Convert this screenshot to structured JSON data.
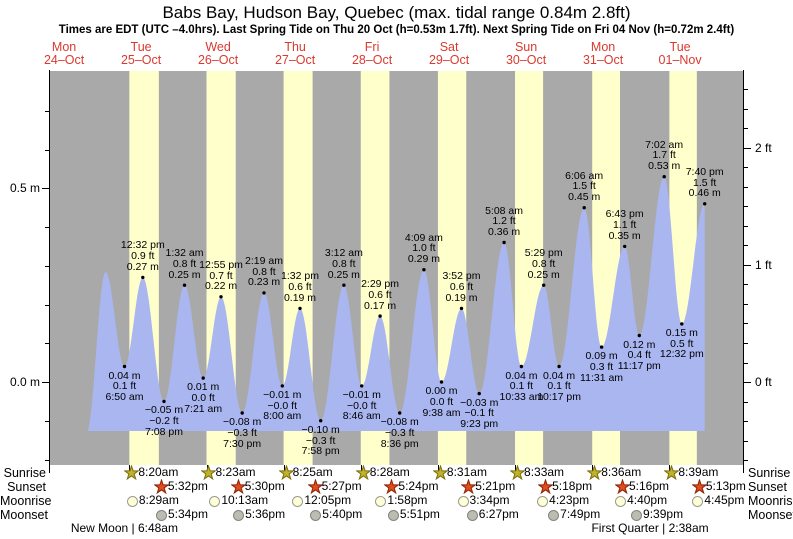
{
  "title": "Babs Bay, Hudson Bay, Quebec (max. tidal range 0.84m 2.8ft)",
  "subtitle": "Times are EDT (UTC –4.0hrs). Last Spring Tide on Thu 20 Oct (h=0.53m 1.7ft). Next Spring Tide on Fri 04 Nov (h=0.72m 2.4ft)",
  "days": [
    {
      "dow": "Mon",
      "date": "24–Oct"
    },
    {
      "dow": "Tue",
      "date": "25–Oct"
    },
    {
      "dow": "Wed",
      "date": "26–Oct"
    },
    {
      "dow": "Thu",
      "date": "27–Oct"
    },
    {
      "dow": "Fri",
      "date": "28–Oct"
    },
    {
      "dow": "Sat",
      "date": "29–Oct"
    },
    {
      "dow": "Sun",
      "date": "30–Oct"
    },
    {
      "dow": "Mon",
      "date": "31–Oct"
    },
    {
      "dow": "Tue",
      "date": "01–Nov"
    }
  ],
  "y_axis_left": {
    "unit": "m",
    "labels": [
      {
        "text": "0.5 m",
        "value": 0.5
      },
      {
        "text": "0.0 m",
        "value": 0.0
      }
    ],
    "minor_step": 0.1,
    "range": [
      -0.21,
      0.8
    ]
  },
  "y_axis_right": {
    "unit": "ft",
    "labels": [
      {
        "text": "2 ft",
        "value_ft": 2
      },
      {
        "text": "1 ft",
        "value_ft": 1
      },
      {
        "text": "0 ft",
        "value_ft": 0
      }
    ]
  },
  "chart_data": {
    "type": "area",
    "title": "Tide height for Babs Bay, Hudson Bay, Quebec",
    "x_range_days": "Mon 24-Oct to Tue 01-Nov",
    "ylim_m": [
      -0.21,
      0.8
    ],
    "curve_start": {
      "t": 19.0,
      "v": -0.13
    },
    "extremes": [
      {
        "t": 24.92,
        "v": 0.284,
        "type": "high",
        "labeled": false
      },
      {
        "t": 30.833,
        "v": 0.04,
        "type": "low",
        "labeled": true,
        "label_m": "0.04 m",
        "label_ft": "0.1 ft",
        "label_time": "6:50 am"
      },
      {
        "t": 36.533,
        "v": 0.27,
        "type": "high",
        "labeled": true,
        "label_m": "0.27 m",
        "label_ft": "0.9 ft",
        "label_time": "12:32 pm"
      },
      {
        "t": 43.133,
        "v": -0.05,
        "type": "low",
        "labeled": true,
        "label_m": "−0.05 m",
        "label_ft": "−0.2 ft",
        "label_time": "7:08 pm"
      },
      {
        "t": 49.533,
        "v": 0.25,
        "type": "high",
        "labeled": true,
        "label_m": "0.25 m",
        "label_ft": "0.8 ft",
        "label_time": "1:32 am"
      },
      {
        "t": 55.35,
        "v": 0.01,
        "type": "low",
        "labeled": true,
        "label_m": "0.01 m",
        "label_ft": "0.0 ft",
        "label_time": "7:21 am"
      },
      {
        "t": 60.917,
        "v": 0.22,
        "type": "high",
        "labeled": true,
        "label_m": "0.22 m",
        "label_ft": "0.7 ft",
        "label_time": "12:55 pm"
      },
      {
        "t": 67.5,
        "v": -0.08,
        "type": "low",
        "labeled": true,
        "label_m": "−0.08 m",
        "label_ft": "−0.3 ft",
        "label_time": "7:30 pm"
      },
      {
        "t": 74.317,
        "v": 0.23,
        "type": "high",
        "labeled": true,
        "label_m": "0.23 m",
        "label_ft": "0.8 ft",
        "label_time": "2:19 am"
      },
      {
        "t": 80.0,
        "v": -0.01,
        "type": "low",
        "labeled": true,
        "label_m": "−0.01 m",
        "label_ft": "−0.0 ft",
        "label_time": "8:00 am"
      },
      {
        "t": 85.533,
        "v": 0.19,
        "type": "high",
        "labeled": true,
        "label_m": "0.19 m",
        "label_ft": "0.6 ft",
        "label_time": "1:32 pm"
      },
      {
        "t": 91.967,
        "v": -0.1,
        "type": "low",
        "labeled": true,
        "label_m": "−0.10 m",
        "label_ft": "−0.3 ft",
        "label_time": "7:58 pm"
      },
      {
        "t": 99.2,
        "v": 0.25,
        "type": "high",
        "labeled": true,
        "label_m": "0.25 m",
        "label_ft": "0.8 ft",
        "label_time": "3:12 am"
      },
      {
        "t": 104.767,
        "v": -0.01,
        "type": "low",
        "labeled": true,
        "label_m": "−0.01 m",
        "label_ft": "−0.0 ft",
        "label_time": "8:46 am"
      },
      {
        "t": 110.483,
        "v": 0.17,
        "type": "high",
        "labeled": true,
        "label_m": "0.17 m",
        "label_ft": "0.6 ft",
        "label_time": "2:29 pm"
      },
      {
        "t": 116.6,
        "v": -0.08,
        "type": "low",
        "labeled": true,
        "label_m": "−0.08 m",
        "label_ft": "−0.3 ft",
        "label_time": "8:36 pm"
      },
      {
        "t": 124.15,
        "v": 0.29,
        "type": "high",
        "labeled": true,
        "label_m": "0.29 m",
        "label_ft": "1.0 ft",
        "label_time": "4:09 am"
      },
      {
        "t": 129.633,
        "v": 0.0,
        "type": "low",
        "labeled": true,
        "label_m": "0.00 m",
        "label_ft": "0.0 ft",
        "label_time": "9:38 am"
      },
      {
        "t": 135.867,
        "v": 0.19,
        "type": "high",
        "labeled": true,
        "label_m": "0.19 m",
        "label_ft": "0.6 ft",
        "label_time": "3:52 pm"
      },
      {
        "t": 141.383,
        "v": -0.03,
        "type": "low",
        "labeled": true,
        "label_m": "−0.03 m",
        "label_ft": "−0.1 ft",
        "label_time": "9:23 pm"
      },
      {
        "t": 149.133,
        "v": 0.36,
        "type": "high",
        "labeled": true,
        "label_m": "0.36 m",
        "label_ft": "1.2 ft",
        "label_time": "5:08 am"
      },
      {
        "t": 154.55,
        "v": 0.04,
        "type": "low",
        "labeled": true,
        "label_m": "0.04 m",
        "label_ft": "0.1 ft",
        "label_time": "10:33 am"
      },
      {
        "t": 161.483,
        "v": 0.25,
        "type": "high",
        "labeled": true,
        "label_m": "0.25 m",
        "label_ft": "0.8 ft",
        "label_time": "5:29 pm"
      },
      {
        "t": 166.283,
        "v": 0.04,
        "type": "low",
        "labeled": true,
        "label_m": "0.04 m",
        "label_ft": "0.1 ft",
        "label_time": "10:17 pm"
      },
      {
        "t": 174.1,
        "v": 0.45,
        "type": "high",
        "labeled": true,
        "label_m": "0.45 m",
        "label_ft": "1.5 ft",
        "label_time": "6:06 am"
      },
      {
        "t": 179.517,
        "v": 0.09,
        "type": "low",
        "labeled": true,
        "label_m": "0.09 m",
        "label_ft": "0.3 ft",
        "label_time": "11:31 am"
      },
      {
        "t": 186.717,
        "v": 0.35,
        "type": "high",
        "labeled": true,
        "label_m": "0.35 m",
        "label_ft": "1.1 ft",
        "label_time": "6:43 pm"
      },
      {
        "t": 191.283,
        "v": 0.12,
        "type": "low",
        "labeled": true,
        "label_m": "0.12 m",
        "label_ft": "0.4 ft",
        "label_time": "11:17 pm"
      },
      {
        "t": 199.033,
        "v": 0.53,
        "type": "high",
        "labeled": true,
        "label_m": "0.53 m",
        "label_ft": "1.7 ft",
        "label_time": "7:02 am"
      },
      {
        "t": 204.533,
        "v": 0.15,
        "type": "low",
        "labeled": true,
        "label_m": "0.15 m",
        "label_ft": "0.5 ft",
        "label_time": "12:32 pm"
      },
      {
        "t": 211.667,
        "v": 0.46,
        "type": "high",
        "labeled": true,
        "label_m": "0.46 m",
        "label_ft": "1.5 ft",
        "label_time": "7:40 pm"
      }
    ]
  },
  "astro": {
    "rows": [
      {
        "label": "Sunrise",
        "icon": "sunrise-star-icon",
        "events": [
          {
            "day": 1,
            "time": "8:20am",
            "h": 8.333
          },
          {
            "day": 2,
            "time": "8:23am",
            "h": 8.383
          },
          {
            "day": 3,
            "time": "8:25am",
            "h": 8.417
          },
          {
            "day": 4,
            "time": "8:28am",
            "h": 8.467
          },
          {
            "day": 5,
            "time": "8:31am",
            "h": 8.517
          },
          {
            "day": 6,
            "time": "8:33am",
            "h": 8.55
          },
          {
            "day": 7,
            "time": "8:36am",
            "h": 8.6
          },
          {
            "day": 8,
            "time": "8:39am",
            "h": 8.65
          }
        ]
      },
      {
        "label": "Sunset",
        "icon": "sunset-star-icon",
        "events": [
          {
            "day": 1,
            "time": "5:32pm",
            "h": 17.533
          },
          {
            "day": 2,
            "time": "5:30pm",
            "h": 17.5
          },
          {
            "day": 3,
            "time": "5:27pm",
            "h": 17.45
          },
          {
            "day": 4,
            "time": "5:24pm",
            "h": 17.4
          },
          {
            "day": 5,
            "time": "5:21pm",
            "h": 17.35
          },
          {
            "day": 6,
            "time": "5:18pm",
            "h": 17.3
          },
          {
            "day": 7,
            "time": "5:16pm",
            "h": 17.267
          },
          {
            "day": 8,
            "time": "5:13pm",
            "h": 17.217
          }
        ]
      },
      {
        "label": "Moonrise",
        "icon": "moonrise-icon",
        "events": [
          {
            "day": 1,
            "time": "8:29am",
            "h": 8.483
          },
          {
            "day": 2,
            "time": "10:13am",
            "h": 10.217
          },
          {
            "day": 3,
            "time": "12:05pm",
            "h": 12.083
          },
          {
            "day": 4,
            "time": "1:58pm",
            "h": 13.967
          },
          {
            "day": 5,
            "time": "3:34pm",
            "h": 15.567
          },
          {
            "day": 6,
            "time": "4:23pm",
            "h": 16.383
          },
          {
            "day": 7,
            "time": "4:40pm",
            "h": 16.667
          },
          {
            "day": 8,
            "time": "4:45pm",
            "h": 16.75
          }
        ]
      },
      {
        "label": "Moonset",
        "icon": "moonset-icon",
        "events": [
          {
            "day": 1,
            "time": "5:34pm",
            "h": 17.567
          },
          {
            "day": 2,
            "time": "5:36pm",
            "h": 17.6
          },
          {
            "day": 3,
            "time": "5:40pm",
            "h": 17.667
          },
          {
            "day": 4,
            "time": "5:51pm",
            "h": 17.85
          },
          {
            "day": 5,
            "time": "6:27pm",
            "h": 18.45
          },
          {
            "day": 6,
            "time": "7:49pm",
            "h": 19.817
          },
          {
            "day": 7,
            "time": "9:39pm",
            "h": 21.65
          }
        ]
      }
    ],
    "phases": [
      {
        "label": "New Moon | 6:48am",
        "day": 1,
        "h": 6.8
      },
      {
        "label": "First Quarter | 2:38am",
        "day": 8,
        "h": 2.633
      }
    ]
  },
  "colors": {
    "night_band": "#a9a9a9",
    "daylight_band": "#ffffcc",
    "tide_area": "#aab6f0",
    "day_label": "#d93a2f",
    "axis": "#000000",
    "sunrise_star": "#c3b32a",
    "sunrise_star_border": "#7d7110",
    "sunset_star": "#e04e1e",
    "sunset_star_border": "#8f2508",
    "moonrise_fill": "#ffffd8",
    "moonrise_border": "#9a9a8e",
    "moonset_fill": "#bcbcb2",
    "moonset_border": "#83837b"
  }
}
